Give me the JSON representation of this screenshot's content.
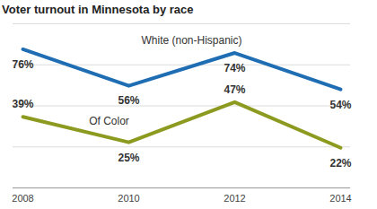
{
  "chart_data": {
    "type": "line",
    "title": "Voter turnout in Minnesota by race",
    "categories": [
      "2008",
      "2010",
      "2012",
      "2014"
    ],
    "series": [
      {
        "name": "White (non-Hispanic)",
        "color": "#1f6db3",
        "values": [
          76,
          56,
          74,
          54
        ],
        "value_labels": [
          "76%",
          "56%",
          "74%",
          "54%"
        ]
      },
      {
        "name": "Of Color",
        "color": "#8c9a1f",
        "values": [
          39,
          25,
          47,
          22
        ],
        "value_labels": [
          "39%",
          "25%",
          "47%",
          "22%"
        ]
      }
    ],
    "ylim": [
      0,
      90
    ],
    "yticks": [
      0,
      22.5,
      45,
      67.5,
      90
    ],
    "grid": true,
    "data_labels": true,
    "tick_labels": "x"
  }
}
